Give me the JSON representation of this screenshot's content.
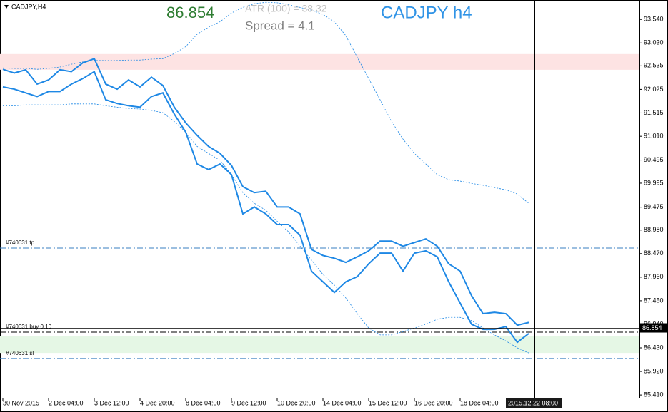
{
  "chart_data": {
    "type": "line",
    "title": "CADJPY,H4",
    "last_price": 86.854,
    "annotations": {
      "atr": "ATR (100) = 38.32",
      "spread": "Spread  =  4.1",
      "symbol": "CADJPY h4"
    },
    "crosshair_label": "2015.12.22 08:00",
    "categories": [
      "30 Nov 2015",
      null,
      null,
      null,
      "2 Dec 04:00",
      null,
      null,
      null,
      "3 Dec 12:00",
      null,
      null,
      null,
      "4 Dec 20:00",
      null,
      null,
      null,
      "8 Dec 04:00",
      null,
      null,
      null,
      "9 Dec 12:00",
      null,
      null,
      null,
      "10 Dec 20:00",
      null,
      null,
      null,
      "14 Dec 04:00",
      null,
      null,
      null,
      "15 Dec 12:00",
      null,
      null,
      null,
      "16 Dec 20:00",
      null,
      null,
      null,
      "18 Dec 04:00",
      null,
      null,
      null,
      null,
      null,
      null
    ],
    "series": [
      {
        "color": "#1e88e5",
        "style": "solid",
        "values": [
          92.46,
          92.38,
          92.45,
          92.14,
          92.23,
          92.45,
          92.41,
          92.6,
          92.69,
          92.14,
          92.03,
          92.23,
          92.08,
          92.29,
          92.11,
          91.64,
          91.3,
          91.03,
          90.79,
          90.64,
          90.38,
          89.92,
          89.79,
          89.82,
          89.48,
          89.48,
          89.33,
          88.56,
          88.43,
          88.37,
          88.28,
          88.4,
          88.53,
          88.74,
          88.74,
          88.63,
          88.71,
          88.79,
          88.63,
          88.25,
          88.09,
          87.56,
          87.17,
          87.2,
          87.17,
          86.92,
          86.98
        ]
      },
      {
        "color": "#1e88e5",
        "style": "solid",
        "values": [
          92.08,
          92.03,
          91.95,
          91.87,
          91.98,
          91.98,
          92.14,
          92.26,
          92.41,
          91.8,
          91.72,
          91.67,
          91.64,
          91.87,
          91.95,
          91.49,
          91.1,
          90.41,
          90.29,
          90.41,
          90.18,
          89.33,
          89.48,
          89.33,
          89.1,
          89.1,
          88.87,
          88.09,
          87.86,
          87.63,
          87.86,
          87.97,
          88.25,
          88.48,
          88.48,
          88.09,
          88.48,
          88.53,
          88.4,
          87.86,
          87.4,
          86.94,
          86.83,
          86.83,
          86.89,
          86.55,
          86.74
        ]
      },
      {
        "color": "#1e88e5",
        "style": "dotted",
        "values": [
          92.49,
          92.48,
          92.48,
          92.46,
          92.48,
          92.51,
          92.57,
          92.62,
          92.65,
          92.65,
          92.65,
          92.66,
          92.66,
          92.68,
          92.69,
          92.8,
          92.95,
          93.22,
          93.37,
          93.49,
          93.68,
          93.8,
          93.88,
          93.91,
          93.9,
          93.86,
          93.8,
          93.74,
          93.65,
          93.49,
          93.19,
          92.72,
          92.26,
          91.8,
          91.33,
          90.95,
          90.64,
          90.41,
          90.18,
          90.07,
          90.04,
          89.99,
          89.95,
          89.9,
          89.85,
          89.76,
          89.56
        ]
      },
      {
        "color": "#1e88e5",
        "style": "dotted",
        "values": [
          91.67,
          91.67,
          91.69,
          91.69,
          91.69,
          91.69,
          91.71,
          91.71,
          91.71,
          91.67,
          91.64,
          91.61,
          91.6,
          91.57,
          91.52,
          91.33,
          91.1,
          90.79,
          90.64,
          90.49,
          90.18,
          89.79,
          89.56,
          89.41,
          89.17,
          88.94,
          88.63,
          88.33,
          88.02,
          87.79,
          87.51,
          87.17,
          86.86,
          86.71,
          86.71,
          86.78,
          86.86,
          86.94,
          87.05,
          87.09,
          87.09,
          87.02,
          86.86,
          86.71,
          86.58,
          86.43,
          86.32
        ]
      }
    ],
    "levels": [
      {
        "label": "#740631 tp",
        "value": 88.59,
        "color": "#3a7fc1"
      },
      {
        "label": "#740631 buy 0.10",
        "value": 86.77,
        "color": "#000000"
      },
      {
        "label": "#740631 sl",
        "value": 86.2,
        "color": "#3a7fc1"
      }
    ],
    "zones": [
      {
        "range": [
          92.45,
          92.79
        ],
        "color": "#fde3e3"
      },
      {
        "range": [
          86.32,
          86.68
        ],
        "color": "#e5f7e5"
      }
    ],
    "ylim": [
      85.35,
      93.96
    ],
    "yticks": [
      {
        "value": 93.54,
        "label": "93.540"
      },
      {
        "value": 93.03,
        "label": "93.030"
      },
      {
        "value": 92.535,
        "label": "92.535"
      },
      {
        "value": 92.025,
        "label": "92.025"
      },
      {
        "value": 91.515,
        "label": "91.515"
      },
      {
        "value": 91.01,
        "label": "91.010"
      },
      {
        "value": 90.495,
        "label": "90.495"
      },
      {
        "value": 89.995,
        "label": "89.995"
      },
      {
        "value": 89.475,
        "label": "89.475"
      },
      {
        "value": 88.98,
        "label": "88.980"
      },
      {
        "value": 88.47,
        "label": "88.470"
      },
      {
        "value": 87.96,
        "label": "87.960"
      },
      {
        "value": 87.45,
        "label": "87.450"
      },
      {
        "value": 86.94,
        "label": "86.940"
      },
      {
        "value": 86.43,
        "label": "86.430"
      },
      {
        "value": 85.92,
        "label": "85.920"
      },
      {
        "value": 85.41,
        "label": "85.410"
      }
    ]
  }
}
